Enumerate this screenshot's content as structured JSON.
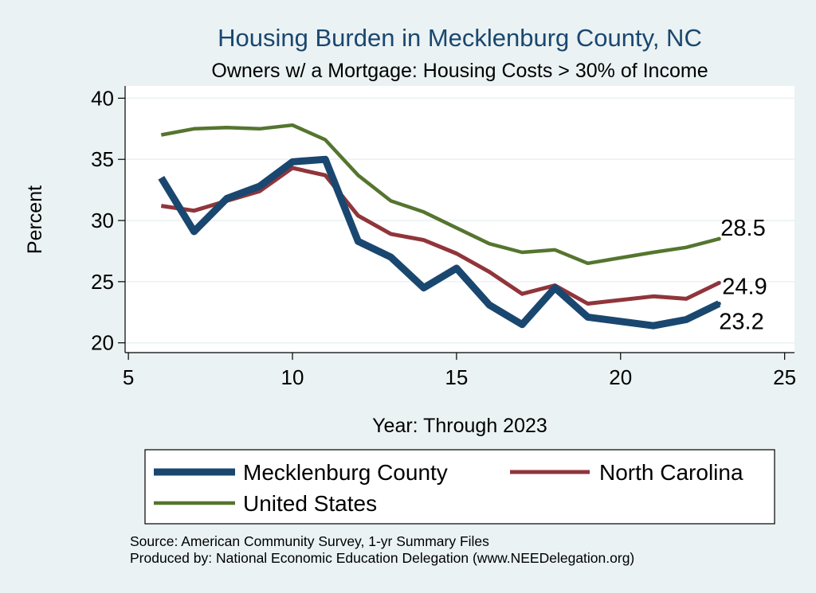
{
  "chart_data": {
    "type": "line",
    "title": "Housing Burden in Mecklenburg County, NC",
    "subtitle": "Owners w/ a Mortgage: Housing Costs > 30% of Income",
    "xlabel": "Year: Through 2023",
    "ylabel": "Percent",
    "xlim": [
      4.9,
      25.3
    ],
    "ylim": [
      19.2,
      41.0
    ],
    "x_ticks": [
      5,
      10,
      15,
      20,
      25
    ],
    "x_tick_labels": [
      "5",
      "10",
      "15",
      "20",
      "25"
    ],
    "y_ticks": [
      20,
      25,
      30,
      35,
      40
    ],
    "y_tick_labels": [
      "20",
      "25",
      "30",
      "35",
      "40"
    ],
    "grid": true,
    "legend_position": "bottom",
    "series": [
      {
        "name": "Mecklenburg County",
        "color": "#1a476f",
        "x": [
          6,
          7,
          8,
          9,
          10,
          11,
          12,
          13,
          14,
          15,
          16,
          17,
          18,
          19,
          21,
          22,
          23
        ],
        "values": [
          33.5,
          29.1,
          31.8,
          32.8,
          34.8,
          35.0,
          28.3,
          27.0,
          24.5,
          26.1,
          23.1,
          21.5,
          24.5,
          22.1,
          21.4,
          21.9,
          23.2
        ],
        "end_label": "23.2"
      },
      {
        "name": "North Carolina",
        "color": "#90353b",
        "x": [
          6,
          7,
          8,
          9,
          10,
          11,
          12,
          13,
          14,
          15,
          16,
          17,
          18,
          19,
          21,
          22,
          23
        ],
        "values": [
          31.2,
          30.8,
          31.6,
          32.4,
          34.3,
          33.7,
          30.4,
          28.9,
          28.4,
          27.3,
          25.8,
          24.0,
          24.7,
          23.2,
          23.8,
          23.6,
          24.9
        ],
        "end_label": "24.9"
      },
      {
        "name": "United States",
        "color": "#55752f",
        "x": [
          6,
          7,
          8,
          9,
          10,
          11,
          12,
          13,
          14,
          15,
          16,
          17,
          18,
          19,
          21,
          22,
          23
        ],
        "values": [
          37.0,
          37.5,
          37.6,
          37.5,
          37.8,
          36.6,
          33.7,
          31.6,
          30.7,
          29.4,
          28.1,
          27.4,
          27.6,
          26.5,
          27.4,
          27.8,
          28.5
        ],
        "end_label": "28.5"
      }
    ],
    "notes": [
      "Source: American Community Survey, 1-yr Summary Files",
      "Produced by: National Economic Education Delegation (www.NEEDelegation.org)"
    ]
  },
  "colors": {
    "background": "#eaf2f3",
    "plot_background": "#ffffff",
    "title": "#1a476f",
    "grid": "#eaf2f3"
  }
}
